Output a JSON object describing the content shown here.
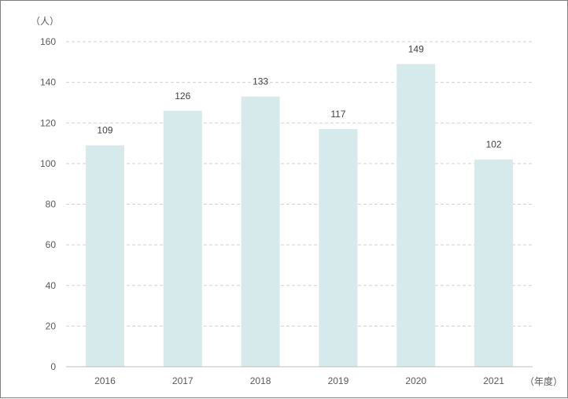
{
  "chart_data": {
    "type": "bar",
    "categories": [
      "2016",
      "2017",
      "2018",
      "2019",
      "2020",
      "2021"
    ],
    "values": [
      109,
      126,
      133,
      117,
      149,
      102
    ],
    "data_labels": [
      "109",
      "126",
      "133",
      "117",
      "149",
      "102"
    ],
    "y_unit_label": "（人）",
    "x_unit_label": "（年度）",
    "ylim": [
      0,
      160
    ],
    "yticks": [
      "0",
      "20",
      "40",
      "60",
      "80",
      "100",
      "120",
      "140",
      "160"
    ],
    "grid": true,
    "legend": "none",
    "bar_color": "#d6e9eb",
    "grid_color": "#d0d0d0",
    "axis_color": "#bfbfbf"
  }
}
